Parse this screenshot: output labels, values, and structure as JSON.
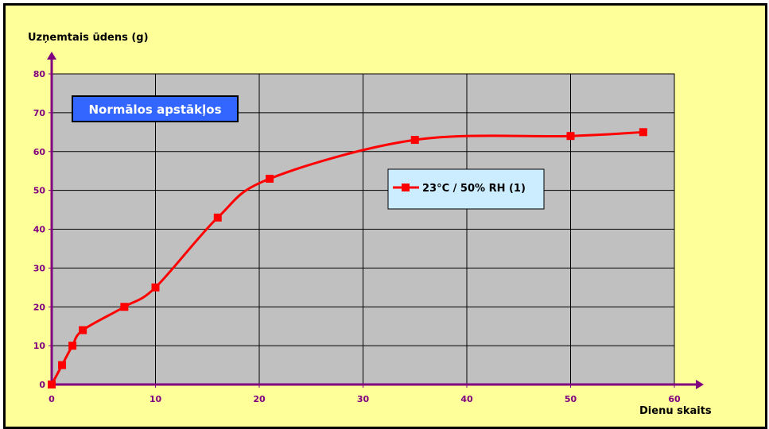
{
  "chart_data": {
    "type": "line",
    "xlabel": "Dienu skaits",
    "ylabel": "Uzņemtais ūdens (g)",
    "xlim": [
      0,
      60
    ],
    "ylim": [
      0,
      80
    ],
    "x_ticks": [
      0,
      10,
      20,
      30,
      40,
      50,
      60
    ],
    "y_ticks": [
      0,
      10,
      20,
      30,
      40,
      50,
      60,
      70,
      80
    ],
    "grid": true,
    "legend_position": "center-right",
    "annotation": "Normālos apstākļos",
    "series": [
      {
        "name": "23°C / 50% RH (1)",
        "color": "#ff0000",
        "marker": "square",
        "smooth": true,
        "x": [
          0,
          1,
          2,
          3,
          7,
          10,
          16,
          21,
          35,
          50,
          57
        ],
        "y": [
          0,
          5,
          10,
          14,
          20,
          25,
          43,
          53,
          63,
          64,
          65
        ]
      }
    ]
  },
  "colors": {
    "background": "#ffff99",
    "plot_area": "#c0c0c0",
    "axis": "#800080",
    "annotation_box": "#3366ff",
    "legend_box": "#ccecff"
  }
}
